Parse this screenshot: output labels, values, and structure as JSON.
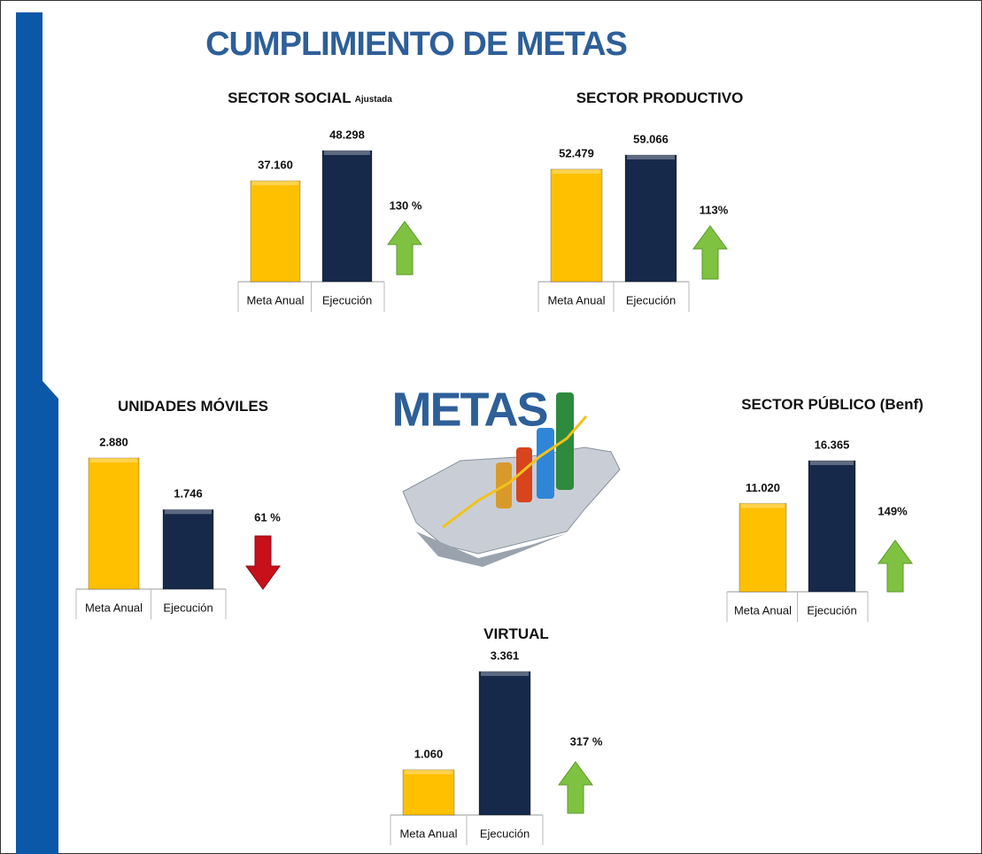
{
  "title": "CUMPLIMIENTO DE METAS",
  "logo_text": "METAS",
  "chart_data": [
    {
      "type": "bar",
      "title": "SECTOR SOCIAL",
      "subtitle": "Ajustada",
      "categories": [
        "Meta Anual",
        "Ejecución"
      ],
      "values": [
        37160,
        48298
      ],
      "value_labels": [
        "37.160",
        "48.298"
      ],
      "colors": [
        "#ffc000",
        "#17294a"
      ],
      "annotation": "130 %"
    },
    {
      "type": "bar",
      "title": "SECTOR PRODUCTIVO",
      "categories": [
        "Meta Anual",
        "Ejecución"
      ],
      "values": [
        52479,
        59066
      ],
      "value_labels": [
        "52.479",
        "59.066"
      ],
      "colors": [
        "#ffc000",
        "#17294a"
      ],
      "annotation": "113%"
    },
    {
      "type": "bar",
      "title": "UNIDADES MÓVILES",
      "categories": [
        "Meta Anual",
        "Ejecución"
      ],
      "values": [
        2880,
        1746
      ],
      "value_labels": [
        "2.880",
        "1.746"
      ],
      "colors": [
        "#ffc000",
        "#17294a"
      ],
      "annotation": "61 %"
    },
    {
      "type": "bar",
      "title": "SECTOR PÚBLICO (Benf)",
      "categories": [
        "Meta Anual",
        "Ejecución"
      ],
      "values": [
        11020,
        16365
      ],
      "value_labels": [
        "11.020",
        "16.365"
      ],
      "colors": [
        "#ffc000",
        "#17294a"
      ],
      "annotation": "149%"
    },
    {
      "type": "bar",
      "title": "VIRTUAL",
      "categories": [
        "Meta Anual",
        "Ejecución"
      ],
      "values": [
        1060,
        3361
      ],
      "value_labels": [
        "1.060",
        "3.361"
      ],
      "colors": [
        "#ffc000",
        "#17294a"
      ],
      "annotation": "317 %"
    }
  ]
}
